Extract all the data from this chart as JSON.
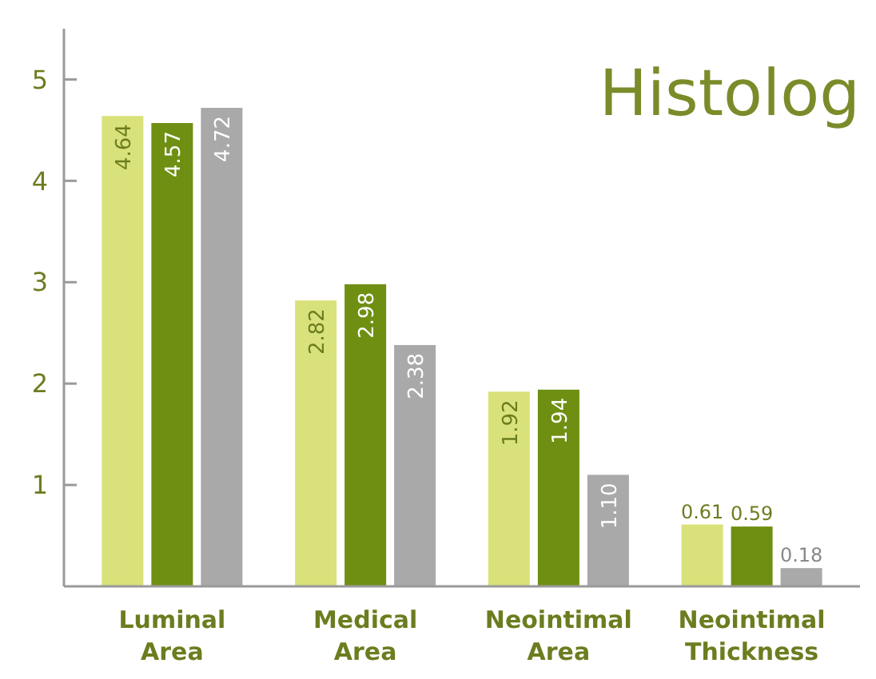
{
  "chart_data": {
    "type": "bar",
    "title": "Histolog",
    "categories": [
      "Luminal Area",
      "Medical Area",
      "Neointimal Area",
      "Neointimal Thickness"
    ],
    "series": [
      {
        "color": "#d9e27a",
        "values": [
          4.64,
          2.82,
          1.92,
          0.61
        ]
      },
      {
        "color": "#6f8f12",
        "values": [
          4.57,
          2.98,
          1.94,
          0.59
        ]
      },
      {
        "color": "#a9a9a9",
        "values": [
          4.72,
          2.38,
          1.1,
          0.18
        ],
        "value_labels": [
          "4.72",
          "2.38",
          "1.10",
          "0.18"
        ]
      }
    ],
    "ylim": [
      0,
      5.5
    ],
    "yticks": [
      1,
      2,
      3,
      4,
      5
    ],
    "data_labels": true
  }
}
